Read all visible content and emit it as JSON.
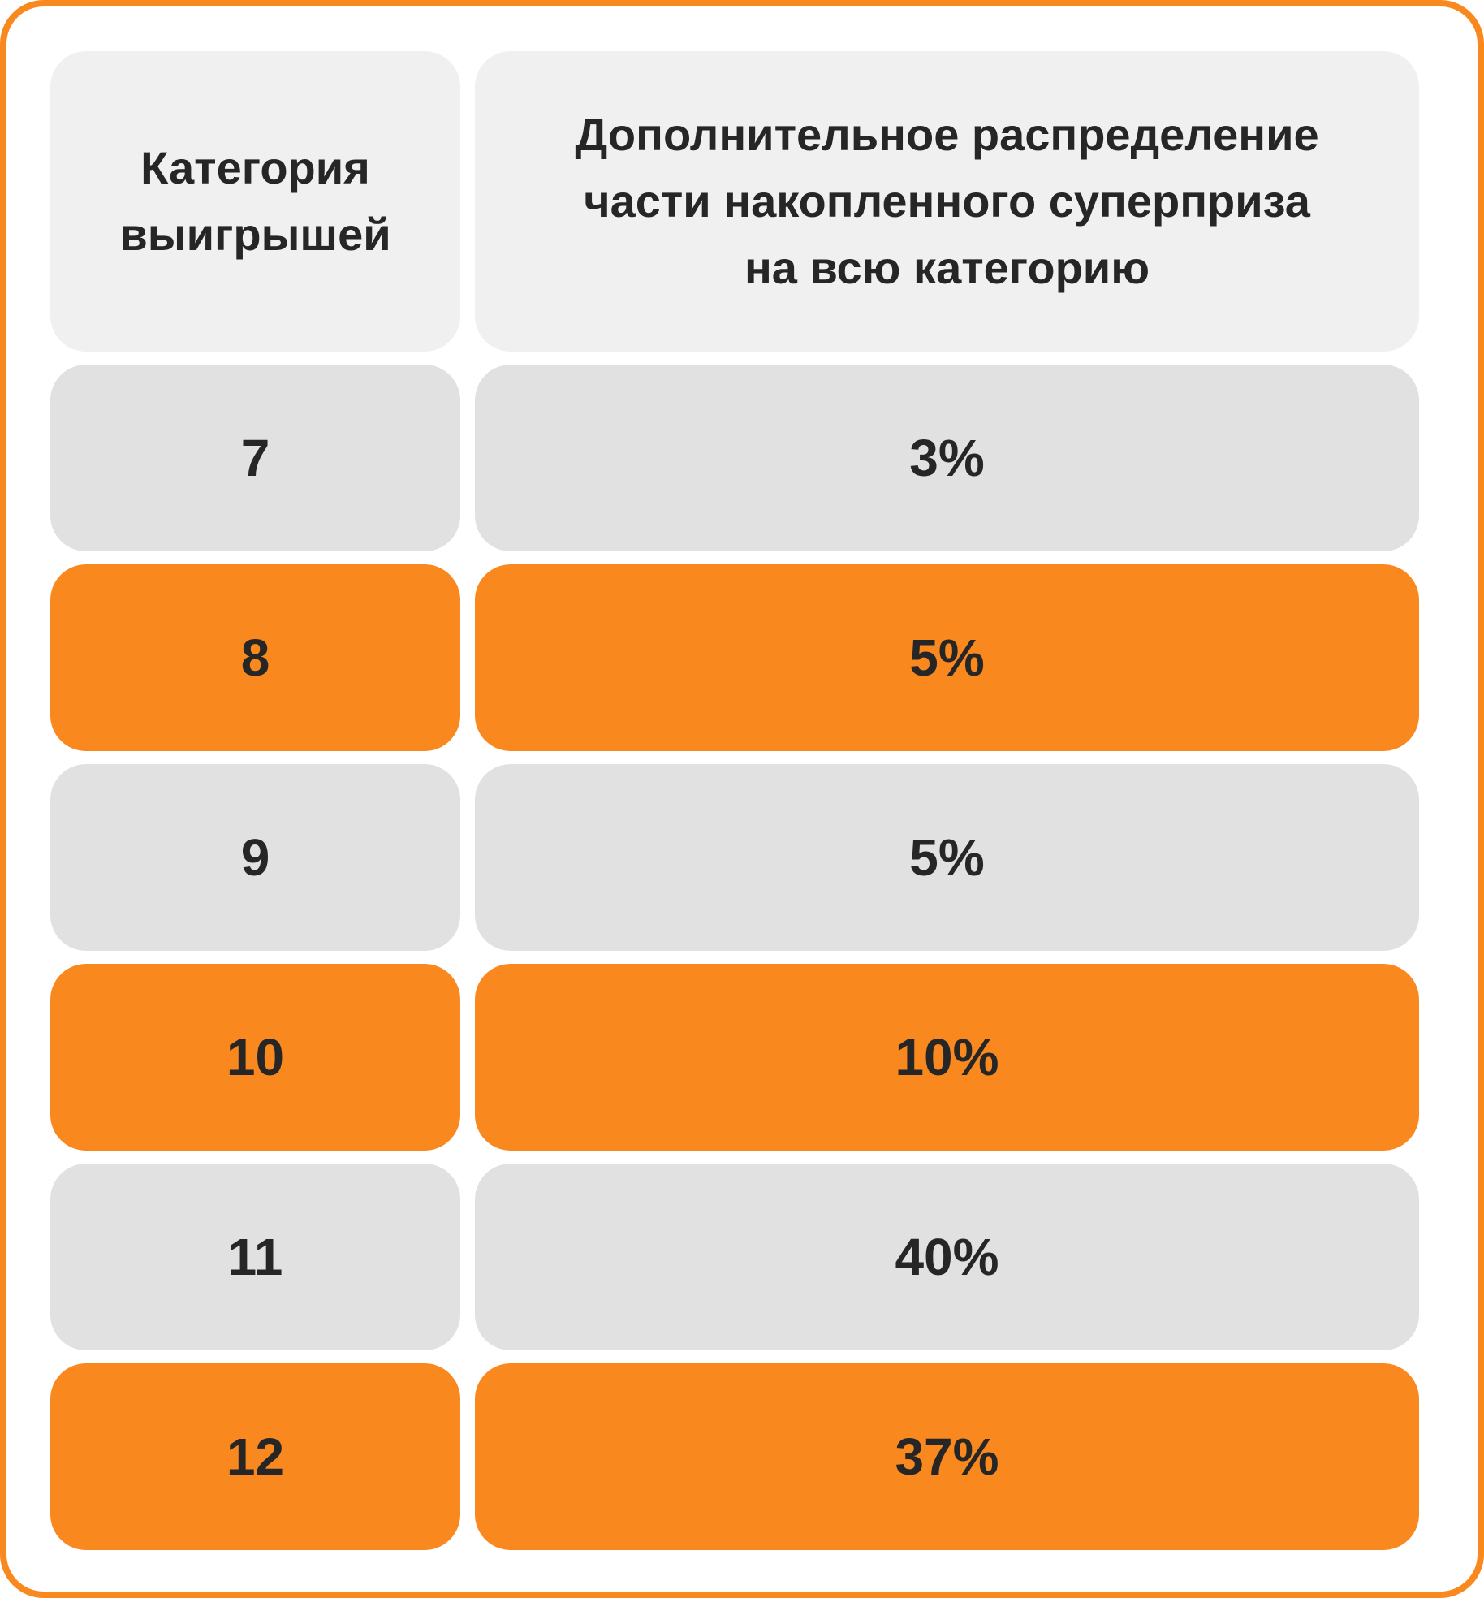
{
  "colors": {
    "accent_orange": "#F9881E",
    "header_gray": "#F0F0F0",
    "row_gray": "#E1E1E1",
    "text_dark": "#262626",
    "card_background": "#FFFFFF"
  },
  "header": {
    "col1_lines": [
      "Категория",
      "выигрышей"
    ],
    "col2_lines": [
      "Дополнительное распределение",
      "части накопленного суперприза",
      "на всю категорию"
    ]
  },
  "table": {
    "rows": [
      {
        "category": "7",
        "share": "3%",
        "highlighted": false
      },
      {
        "category": "8",
        "share": "5%",
        "highlighted": true
      },
      {
        "category": "9",
        "share": "5%",
        "highlighted": false
      },
      {
        "category": "10",
        "share": "10%",
        "highlighted": true
      },
      {
        "category": "11",
        "share": "40%",
        "highlighted": false
      },
      {
        "category": "12",
        "share": "37%",
        "highlighted": true
      }
    ]
  },
  "chart_data": {
    "type": "table",
    "columns": [
      "Категория выигрышей",
      "Дополнительное распределение части накопленного суперприза на всю категорию"
    ],
    "rows": [
      [
        "7",
        "3%"
      ],
      [
        "8",
        "5%"
      ],
      [
        "9",
        "5%"
      ],
      [
        "10",
        "10%"
      ],
      [
        "11",
        "40%"
      ],
      [
        "12",
        "37%"
      ]
    ],
    "values_pct": [
      3,
      5,
      5,
      10,
      40,
      37
    ],
    "highlighted_categories": [
      "8",
      "10",
      "12"
    ],
    "legend_position": "none",
    "grid": false
  }
}
